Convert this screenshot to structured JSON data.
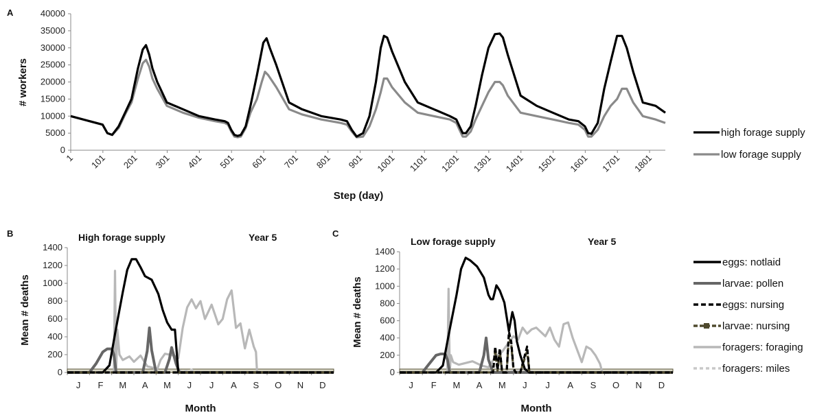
{
  "chart_data": [
    {
      "panel": "A",
      "type": "line",
      "xlabel": "Step (day)",
      "ylabel": "# workers",
      "ylim": [
        0,
        40000
      ],
      "xlim": [
        1,
        1850
      ],
      "yticks": [
        "0",
        "5000",
        "10000",
        "15000",
        "20000",
        "25000",
        "30000",
        "35000",
        "40000"
      ],
      "xticks": [
        "1",
        "101",
        "201",
        "301",
        "401",
        "501",
        "601",
        "701",
        "801",
        "901",
        "1001",
        "1101",
        "1201",
        "1301",
        "1401",
        "1501",
        "1601",
        "1701",
        "1801"
      ],
      "legend_position": "right",
      "series": [
        {
          "name": "high forage supply",
          "color": "#000000",
          "x": [
            1,
            60,
            80,
            100,
            115,
            130,
            150,
            170,
            190,
            210,
            225,
            235,
            245,
            255,
            270,
            300,
            350,
            400,
            450,
            480,
            490,
            500,
            510,
            520,
            530,
            545,
            560,
            580,
            600,
            610,
            620,
            640,
            680,
            720,
            780,
            840,
            860,
            875,
            890,
            910,
            930,
            950,
            965,
            975,
            985,
            1000,
            1040,
            1080,
            1130,
            1180,
            1200,
            1210,
            1220,
            1230,
            1245,
            1260,
            1280,
            1300,
            1320,
            1335,
            1345,
            1360,
            1400,
            1450,
            1500,
            1550,
            1580,
            1600,
            1610,
            1620,
            1640,
            1660,
            1680,
            1700,
            1715,
            1730,
            1750,
            1780,
            1820,
            1850
          ],
          "y": [
            10000,
            8500,
            8000,
            7500,
            5000,
            4500,
            7000,
            11000,
            15000,
            24000,
            29500,
            30800,
            28000,
            24000,
            20000,
            14000,
            12000,
            10000,
            9000,
            8500,
            8000,
            6000,
            4500,
            4200,
            4500,
            7000,
            13000,
            22000,
            31500,
            32800,
            30000,
            25000,
            14000,
            12000,
            10000,
            9000,
            8500,
            6000,
            4000,
            5000,
            10000,
            20000,
            30000,
            33500,
            33000,
            29000,
            20000,
            14000,
            12000,
            10000,
            9000,
            7000,
            5000,
            5000,
            7000,
            13000,
            22000,
            30000,
            34000,
            34200,
            33000,
            28000,
            16000,
            13000,
            11000,
            9000,
            8500,
            7000,
            5000,
            4800,
            8000,
            18000,
            26000,
            33500,
            33500,
            30000,
            23000,
            14000,
            13000,
            11000
          ]
        },
        {
          "name": "low forage supply",
          "color": "#8a8a8a",
          "x": [
            1,
            60,
            80,
            100,
            115,
            130,
            150,
            170,
            190,
            210,
            225,
            235,
            245,
            255,
            270,
            300,
            350,
            400,
            450,
            480,
            490,
            500,
            510,
            520,
            530,
            545,
            560,
            580,
            595,
            605,
            615,
            640,
            680,
            720,
            780,
            840,
            860,
            875,
            890,
            910,
            930,
            950,
            965,
            975,
            985,
            1000,
            1040,
            1080,
            1130,
            1180,
            1200,
            1210,
            1220,
            1230,
            1245,
            1260,
            1280,
            1300,
            1320,
            1335,
            1345,
            1360,
            1400,
            1450,
            1500,
            1550,
            1580,
            1600,
            1610,
            1620,
            1640,
            1660,
            1680,
            1700,
            1715,
            1730,
            1750,
            1780,
            1820,
            1850
          ],
          "y": [
            10000,
            8500,
            8000,
            7500,
            5000,
            4500,
            6500,
            10500,
            14000,
            21000,
            25500,
            26500,
            24500,
            21000,
            18000,
            13000,
            11000,
            9500,
            8500,
            8000,
            7500,
            5500,
            4000,
            3800,
            4000,
            6500,
            11000,
            15000,
            20000,
            23000,
            22000,
            18500,
            12000,
            10500,
            9000,
            8000,
            7500,
            5500,
            3800,
            4000,
            7000,
            12000,
            17000,
            21000,
            21000,
            18500,
            14000,
            11000,
            10000,
            9000,
            8000,
            6000,
            4000,
            4000,
            5500,
            9000,
            13000,
            17000,
            20000,
            20000,
            19000,
            16000,
            11000,
            10000,
            9000,
            8000,
            7500,
            6000,
            4000,
            4000,
            6000,
            10000,
            13000,
            15000,
            18000,
            18000,
            14000,
            10000,
            9000,
            8000
          ]
        }
      ]
    },
    {
      "panel": "B",
      "type": "line",
      "title": "High forage supply",
      "subtitle": "Year 5",
      "xlabel": "Month",
      "ylabel": "Mean # deaths",
      "ylim": [
        0,
        1400
      ],
      "xlim": [
        0,
        12
      ],
      "yticks": [
        "0",
        "200",
        "400",
        "600",
        "800",
        "1000",
        "1200",
        "1400"
      ],
      "categories": [
        "J",
        "F",
        "M",
        "A",
        "M",
        "J",
        "J",
        "A",
        "S",
        "O",
        "N",
        "D"
      ],
      "series": [
        {
          "name": "eggs: notlaid",
          "color": "#000000",
          "x": [
            0,
            1.6,
            1.9,
            2.2,
            2.5,
            2.7,
            2.9,
            3.1,
            3.3,
            3.5,
            3.8,
            4.1,
            4.3,
            4.5,
            4.7,
            4.85,
            5.0,
            12
          ],
          "y": [
            0,
            0,
            80,
            500,
            900,
            1150,
            1270,
            1270,
            1180,
            1080,
            1040,
            880,
            700,
            560,
            480,
            480,
            0,
            0
          ]
        },
        {
          "name": "larvae: pollen",
          "color": "#666666",
          "x": [
            0,
            1.0,
            1.3,
            1.6,
            1.8,
            2.0,
            2.1,
            2.2,
            3.4,
            3.6,
            3.7,
            3.8,
            4.0,
            4.4,
            4.6,
            4.7,
            4.9,
            5.05,
            5.2,
            12
          ],
          "y": [
            0,
            0,
            100,
            230,
            265,
            265,
            200,
            0,
            0,
            240,
            500,
            250,
            0,
            0,
            150,
            280,
            100,
            0,
            0,
            0
          ]
        },
        {
          "name": "eggs: nursing",
          "color": "#000000",
          "dash": "7,4",
          "x": [
            0,
            12
          ],
          "y": [
            0,
            0
          ]
        },
        {
          "name": "larvae: nursing",
          "color": "#4f4a2e",
          "dash": "6,3",
          "x": [
            0,
            12
          ],
          "y": [
            0,
            0
          ]
        },
        {
          "name": "foragers: foraging",
          "color": "#b8b8b8",
          "x": [
            0,
            2.1,
            2.15,
            2.2,
            2.25,
            2.35,
            2.5,
            2.8,
            3.0,
            3.3,
            3.6,
            3.9,
            4.0,
            4.2,
            4.4,
            4.8,
            5.0,
            5.2,
            5.4,
            5.6,
            5.8,
            6.0,
            6.2,
            6.5,
            6.8,
            7.0,
            7.2,
            7.4,
            7.6,
            7.8,
            8.0,
            8.2,
            8.4,
            8.5,
            8.55,
            8.6,
            12
          ],
          "y": [
            0,
            0,
            1140,
            0,
            480,
            200,
            140,
            180,
            120,
            190,
            70,
            50,
            0,
            140,
            210,
            190,
            160,
            500,
            730,
            820,
            720,
            800,
            600,
            760,
            540,
            600,
            820,
            920,
            500,
            550,
            270,
            480,
            290,
            230,
            0,
            0,
            0
          ]
        },
        {
          "name": "foragers: miles",
          "color": "#c8c8c8",
          "dash": "5,4",
          "x": [
            0,
            4.8,
            5.0,
            5.3,
            5.6,
            5.8,
            6.1,
            12
          ],
          "y": [
            0,
            0,
            25,
            15,
            30,
            10,
            0,
            0
          ]
        }
      ]
    },
    {
      "panel": "C",
      "type": "line",
      "title": "Low forage supply",
      "subtitle": "Year 5",
      "xlabel": "Month",
      "ylabel": "Mean # deaths",
      "ylim": [
        0,
        1400
      ],
      "xlim": [
        0,
        12
      ],
      "yticks": [
        "0",
        "200",
        "400",
        "600",
        "800",
        "1000",
        "1200",
        "1400"
      ],
      "categories": [
        "J",
        "F",
        "M",
        "A",
        "M",
        "J",
        "J",
        "A",
        "S",
        "O",
        "N",
        "D"
      ],
      "legend_position": "right",
      "series": [
        {
          "name": "eggs: notlaid",
          "color": "#000000",
          "x": [
            0,
            1.6,
            1.9,
            2.2,
            2.5,
            2.7,
            2.9,
            3.1,
            3.4,
            3.7,
            3.9,
            4.0,
            4.1,
            4.25,
            4.4,
            4.6,
            4.8,
            4.95,
            5.05,
            5.15,
            5.3,
            5.5,
            5.7,
            12
          ],
          "y": [
            0,
            0,
            80,
            500,
            900,
            1200,
            1330,
            1300,
            1230,
            1100,
            900,
            850,
            850,
            1010,
            950,
            810,
            480,
            700,
            600,
            360,
            200,
            40,
            0,
            0
          ]
        },
        {
          "name": "larvae: pollen",
          "color": "#666666",
          "x": [
            0,
            1.0,
            1.3,
            1.6,
            1.8,
            2.0,
            2.1,
            2.2,
            3.5,
            3.7,
            3.8,
            3.9,
            4.1,
            12
          ],
          "y": [
            0,
            0,
            100,
            200,
            215,
            215,
            150,
            0,
            0,
            200,
            400,
            150,
            0,
            0
          ]
        },
        {
          "name": "eggs: nursing",
          "color": "#000000",
          "dash": "7,4",
          "x": [
            0,
            4.1,
            4.2,
            4.3,
            4.4,
            4.5,
            4.7,
            4.8,
            4.9,
            5.0,
            5.1,
            5.3,
            5.5,
            5.6,
            5.7,
            12
          ],
          "y": [
            0,
            0,
            300,
            30,
            280,
            0,
            0,
            470,
            360,
            50,
            0,
            0,
            200,
            300,
            0,
            0
          ]
        },
        {
          "name": "larvae: nursing",
          "color": "#4f4a2e",
          "dash": "6,3",
          "x": [
            0,
            4.1,
            4.2,
            4.3,
            4.4,
            4.5,
            4.7,
            4.8,
            4.9,
            5.0,
            5.1,
            5.3,
            5.5,
            5.6,
            5.7,
            12
          ],
          "y": [
            0,
            0,
            260,
            20,
            250,
            0,
            0,
            420,
            330,
            40,
            0,
            0,
            170,
            260,
            0,
            0
          ]
        },
        {
          "name": "foragers: foraging",
          "color": "#b8b8b8",
          "x": [
            0,
            2.1,
            2.15,
            2.2,
            2.25,
            2.35,
            2.6,
            2.9,
            3.2,
            3.6,
            3.9,
            4.0,
            4.2,
            4.5,
            4.8,
            5.0,
            5.2,
            5.4,
            5.6,
            5.8,
            6.0,
            6.2,
            6.4,
            6.6,
            6.8,
            7.0,
            7.2,
            7.4,
            7.6,
            7.8,
            8.0,
            8.2,
            8.4,
            8.6,
            8.8,
            8.9,
            12
          ],
          "y": [
            0,
            0,
            970,
            0,
            200,
            120,
            90,
            110,
            130,
            80,
            60,
            100,
            180,
            240,
            350,
            420,
            380,
            520,
            450,
            500,
            520,
            470,
            420,
            520,
            380,
            300,
            560,
            580,
            400,
            260,
            120,
            300,
            270,
            200,
            100,
            0,
            0
          ]
        },
        {
          "name": "foragers: miles",
          "color": "#c8c8c8",
          "dash": "5,4",
          "x": [
            0,
            4.5,
            4.8,
            5.1,
            5.4,
            5.7,
            6.0,
            12
          ],
          "y": [
            0,
            0,
            15,
            25,
            15,
            20,
            0,
            0
          ]
        }
      ]
    }
  ],
  "labels": {
    "panel_a": "A",
    "panel_b": "B",
    "panel_c": "C"
  }
}
